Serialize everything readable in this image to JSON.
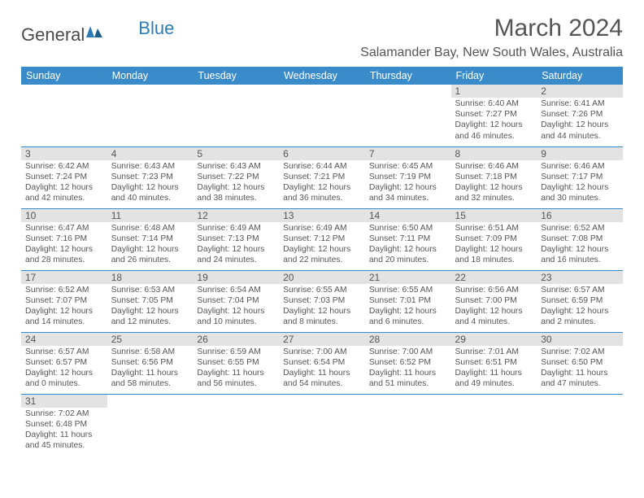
{
  "logo": {
    "part1": "General",
    "part2": "Blue"
  },
  "title": "March 2024",
  "location": "Salamander Bay, New South Wales, Australia",
  "colors": {
    "header_bg": "#3a8bc9",
    "header_text": "#ffffff",
    "daynum_bg": "#e3e3e3",
    "text": "#555555",
    "row_divider": "#3a8bc9",
    "logo_blue": "#2c7bb8"
  },
  "day_headers": [
    "Sunday",
    "Monday",
    "Tuesday",
    "Wednesday",
    "Thursday",
    "Friday",
    "Saturday"
  ],
  "weeks": [
    [
      null,
      null,
      null,
      null,
      null,
      {
        "n": "1",
        "sr": "6:40 AM",
        "ss": "7:27 PM",
        "dh": "12",
        "dm": "46"
      },
      {
        "n": "2",
        "sr": "6:41 AM",
        "ss": "7:26 PM",
        "dh": "12",
        "dm": "44"
      }
    ],
    [
      {
        "n": "3",
        "sr": "6:42 AM",
        "ss": "7:24 PM",
        "dh": "12",
        "dm": "42"
      },
      {
        "n": "4",
        "sr": "6:43 AM",
        "ss": "7:23 PM",
        "dh": "12",
        "dm": "40"
      },
      {
        "n": "5",
        "sr": "6:43 AM",
        "ss": "7:22 PM",
        "dh": "12",
        "dm": "38"
      },
      {
        "n": "6",
        "sr": "6:44 AM",
        "ss": "7:21 PM",
        "dh": "12",
        "dm": "36"
      },
      {
        "n": "7",
        "sr": "6:45 AM",
        "ss": "7:19 PM",
        "dh": "12",
        "dm": "34"
      },
      {
        "n": "8",
        "sr": "6:46 AM",
        "ss": "7:18 PM",
        "dh": "12",
        "dm": "32"
      },
      {
        "n": "9",
        "sr": "6:46 AM",
        "ss": "7:17 PM",
        "dh": "12",
        "dm": "30"
      }
    ],
    [
      {
        "n": "10",
        "sr": "6:47 AM",
        "ss": "7:16 PM",
        "dh": "12",
        "dm": "28"
      },
      {
        "n": "11",
        "sr": "6:48 AM",
        "ss": "7:14 PM",
        "dh": "12",
        "dm": "26"
      },
      {
        "n": "12",
        "sr": "6:49 AM",
        "ss": "7:13 PM",
        "dh": "12",
        "dm": "24"
      },
      {
        "n": "13",
        "sr": "6:49 AM",
        "ss": "7:12 PM",
        "dh": "12",
        "dm": "22"
      },
      {
        "n": "14",
        "sr": "6:50 AM",
        "ss": "7:11 PM",
        "dh": "12",
        "dm": "20"
      },
      {
        "n": "15",
        "sr": "6:51 AM",
        "ss": "7:09 PM",
        "dh": "12",
        "dm": "18"
      },
      {
        "n": "16",
        "sr": "6:52 AM",
        "ss": "7:08 PM",
        "dh": "12",
        "dm": "16"
      }
    ],
    [
      {
        "n": "17",
        "sr": "6:52 AM",
        "ss": "7:07 PM",
        "dh": "12",
        "dm": "14"
      },
      {
        "n": "18",
        "sr": "6:53 AM",
        "ss": "7:05 PM",
        "dh": "12",
        "dm": "12"
      },
      {
        "n": "19",
        "sr": "6:54 AM",
        "ss": "7:04 PM",
        "dh": "12",
        "dm": "10"
      },
      {
        "n": "20",
        "sr": "6:55 AM",
        "ss": "7:03 PM",
        "dh": "12",
        "dm": "8"
      },
      {
        "n": "21",
        "sr": "6:55 AM",
        "ss": "7:01 PM",
        "dh": "12",
        "dm": "6"
      },
      {
        "n": "22",
        "sr": "6:56 AM",
        "ss": "7:00 PM",
        "dh": "12",
        "dm": "4"
      },
      {
        "n": "23",
        "sr": "6:57 AM",
        "ss": "6:59 PM",
        "dh": "12",
        "dm": "2"
      }
    ],
    [
      {
        "n": "24",
        "sr": "6:57 AM",
        "ss": "6:57 PM",
        "dh": "12",
        "dm": "0"
      },
      {
        "n": "25",
        "sr": "6:58 AM",
        "ss": "6:56 PM",
        "dh": "11",
        "dm": "58"
      },
      {
        "n": "26",
        "sr": "6:59 AM",
        "ss": "6:55 PM",
        "dh": "11",
        "dm": "56"
      },
      {
        "n": "27",
        "sr": "7:00 AM",
        "ss": "6:54 PM",
        "dh": "11",
        "dm": "54"
      },
      {
        "n": "28",
        "sr": "7:00 AM",
        "ss": "6:52 PM",
        "dh": "11",
        "dm": "51"
      },
      {
        "n": "29",
        "sr": "7:01 AM",
        "ss": "6:51 PM",
        "dh": "11",
        "dm": "49"
      },
      {
        "n": "30",
        "sr": "7:02 AM",
        "ss": "6:50 PM",
        "dh": "11",
        "dm": "47"
      }
    ],
    [
      {
        "n": "31",
        "sr": "7:02 AM",
        "ss": "6:48 PM",
        "dh": "11",
        "dm": "45"
      },
      null,
      null,
      null,
      null,
      null,
      null
    ]
  ]
}
